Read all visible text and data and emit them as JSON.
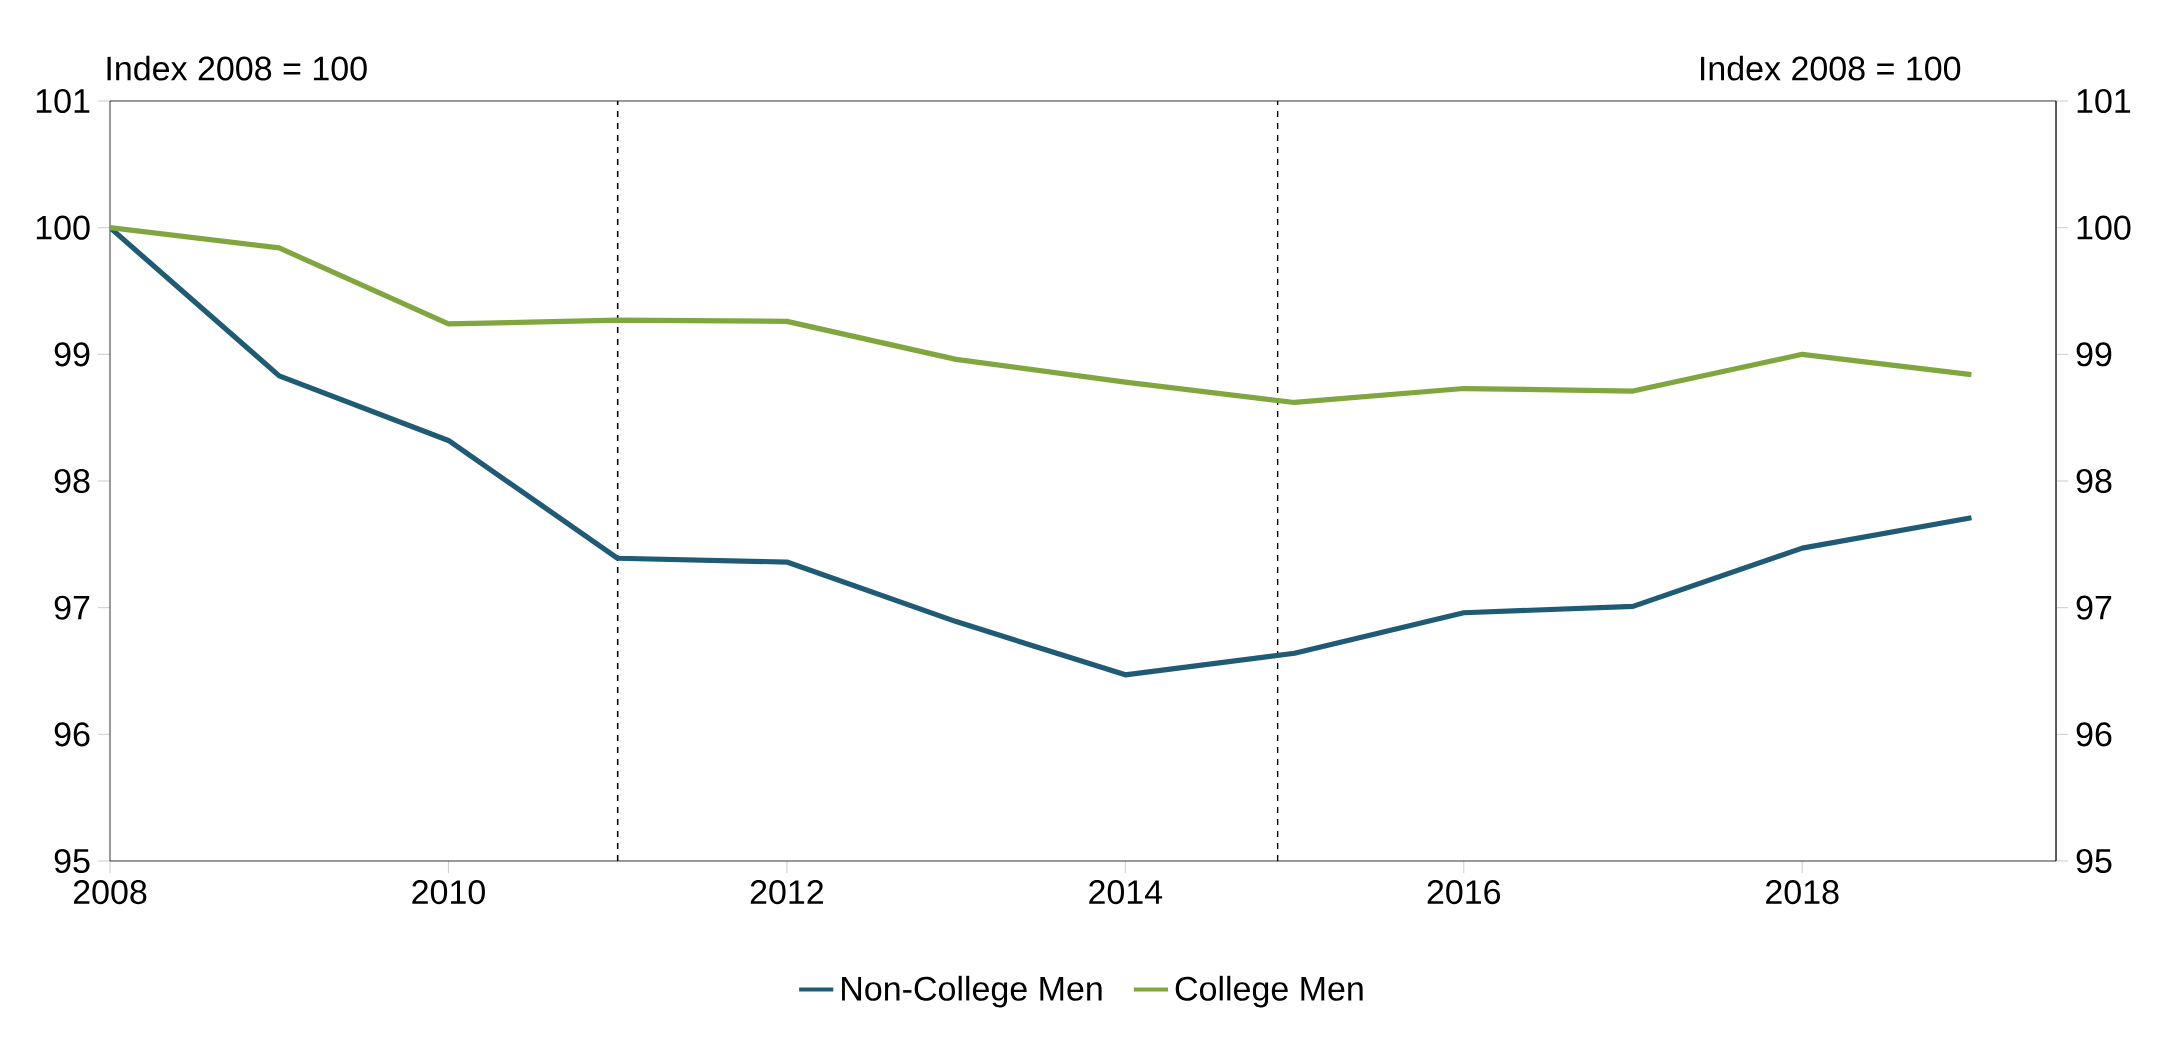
{
  "chart_data": {
    "type": "line",
    "annotations": [
      "Index 2008 = 100",
      "Index 2008 = 100"
    ],
    "x": [
      2008,
      2009,
      2010,
      2011,
      2012,
      2013,
      2014,
      2015,
      2016,
      2017,
      2018,
      2019
    ],
    "series": [
      {
        "name": "Non-College Men",
        "color": "#1f5b74",
        "values": [
          100,
          98.83,
          98.32,
          97.39,
          97.36,
          96.89,
          96.47,
          96.64,
          96.96,
          97.01,
          97.47,
          97.71
        ]
      },
      {
        "name": "College Men",
        "color": "#80a73f",
        "values": [
          100,
          99.84,
          99.24,
          99.27,
          99.26,
          98.96,
          98.78,
          98.62,
          98.73,
          98.71,
          99.0,
          98.84
        ]
      }
    ],
    "xlim": [
      2008,
      2019.5
    ],
    "xticks": [
      2008,
      2010,
      2012,
      2014,
      2016,
      2018
    ],
    "ylim": [
      95,
      101
    ],
    "yticks": [
      95,
      96,
      97,
      98,
      99,
      100,
      101
    ],
    "y2lim": [
      95,
      101
    ],
    "y2ticks": [
      95,
      96,
      97,
      98,
      99,
      100,
      101
    ],
    "ref_lines": [
      {
        "axis": "x",
        "value": 2011,
        "color": "#000000",
        "line_style": "dashed"
      },
      {
        "axis": "x",
        "value": 2014.9,
        "color": "#000000",
        "line_style": "dashed"
      }
    ],
    "grid": false,
    "legend": "bottom",
    "marker": "none",
    "line_style": "solid"
  }
}
